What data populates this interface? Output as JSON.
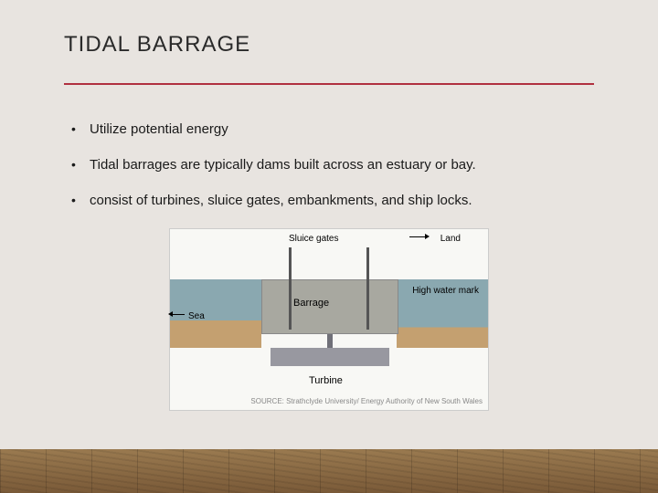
{
  "title": "TIDAL BARRAGE",
  "bullets": [
    "Utilize potential energy",
    "Tidal barrages are typically dams built across an estuary or bay.",
    "consist of turbines, sluice gates, embankments, and ship locks."
  ],
  "diagram": {
    "labels": {
      "sluice": "Sluice gates",
      "land": "Land",
      "high_water": "High water\nmark",
      "sea": "Sea",
      "barrage": "Barrage",
      "turbine": "Turbine"
    },
    "source": "SOURCE: Strathclyde University/\nEnergy Authority of New South Wales",
    "colors": {
      "water": "#8aa8b0",
      "sand": "#c4a070",
      "barrage": "#a8a8a0",
      "turbine": "#9898a0",
      "background": "#f8f8f5"
    }
  },
  "style": {
    "page_bg": "#e8e4e0",
    "divider_color": "#b03040",
    "title_fontsize": 24,
    "body_fontsize": 15
  }
}
